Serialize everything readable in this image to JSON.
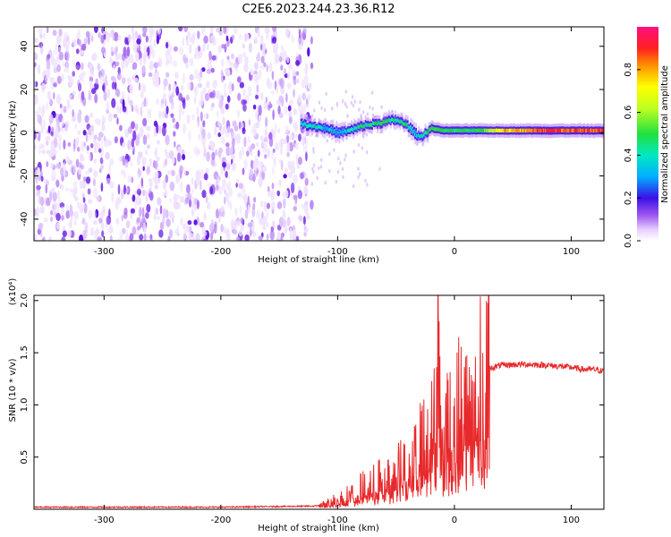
{
  "title": "C2E6.2023.244.23.36.R12",
  "colorbar": {
    "label": "Normalized spectral amplitude",
    "ticks": [
      0.0,
      0.2,
      0.4,
      0.6,
      0.8
    ],
    "tick_labels": [
      "0.0",
      "0.2",
      "0.4",
      "0.6",
      "0.8"
    ],
    "range": [
      0,
      1
    ]
  },
  "chart_data": [
    {
      "type": "heatmap",
      "xlabel": "Height of straight line (km)",
      "ylabel": "Frequency (Hz)",
      "xlim": [
        -360,
        128
      ],
      "ylim": [
        -50,
        49
      ],
      "xticks": [
        -300,
        -200,
        -100,
        0,
        100
      ],
      "xtick_labels": [
        "-300",
        "-200",
        "-100",
        "0",
        "100"
      ],
      "yticks": [
        -40,
        -20,
        0,
        20,
        40
      ],
      "ytick_labels": [
        "-40",
        "-20",
        "0",
        "20",
        "40"
      ],
      "noise_region_x": [
        -360,
        -122
      ],
      "carrier_track": {
        "x": [
          -132,
          -120,
          -110,
          -100,
          -90,
          -80,
          -70,
          -60,
          -50,
          -40,
          -35,
          -30,
          -25,
          -20,
          -10,
          0,
          20,
          40,
          60,
          80,
          100,
          128
        ],
        "freq": [
          4,
          3,
          2,
          0,
          1,
          3,
          4,
          5,
          6,
          3,
          0,
          -2,
          0,
          2,
          1,
          1,
          1,
          1,
          1,
          1,
          1,
          1
        ],
        "amplitude": [
          0.45,
          0.45,
          0.4,
          0.35,
          0.45,
          0.5,
          0.5,
          0.5,
          0.5,
          0.5,
          0.4,
          0.4,
          0.5,
          0.55,
          0.55,
          0.5,
          0.55,
          0.8,
          0.85,
          0.9,
          0.9,
          0.9
        ]
      }
    },
    {
      "type": "line",
      "xlabel": "Height of straight line (km)",
      "ylabel": "SNR (10 * v/v)",
      "yscale_label": "(x10⁴)",
      "xlim": [
        -360,
        128
      ],
      "ylim": [
        0,
        2.05
      ],
      "xticks": [
        -300,
        -200,
        -100,
        0,
        100
      ],
      "xtick_labels": [
        "-300",
        "-200",
        "-100",
        "0",
        "100"
      ],
      "yticks": [
        0.5,
        1.0,
        1.5,
        2.0
      ],
      "ytick_labels": [
        "0.5",
        "1.0",
        "1.5",
        "2.0"
      ],
      "series": [
        {
          "color": "#e8292b",
          "x": [
            -360,
            -200,
            -120,
            -110,
            -100,
            -90,
            -80,
            -70,
            -60,
            -50,
            -40,
            -35,
            -30,
            -25,
            -20,
            -16,
            -14,
            -12,
            -10,
            -5,
            0,
            10,
            20,
            30,
            40,
            60,
            80,
            90,
            100,
            110,
            120,
            128
          ],
          "y": [
            0.02,
            0.02,
            0.03,
            0.05,
            0.1,
            0.14,
            0.2,
            0.25,
            0.3,
            0.35,
            0.45,
            0.5,
            0.6,
            0.65,
            0.75,
            0.85,
            1.4,
            0.9,
            0.75,
            0.8,
            0.95,
            1.1,
            1.25,
            1.35,
            1.38,
            1.39,
            1.38,
            1.37,
            1.36,
            1.34,
            1.34,
            1.32
          ]
        }
      ]
    }
  ]
}
